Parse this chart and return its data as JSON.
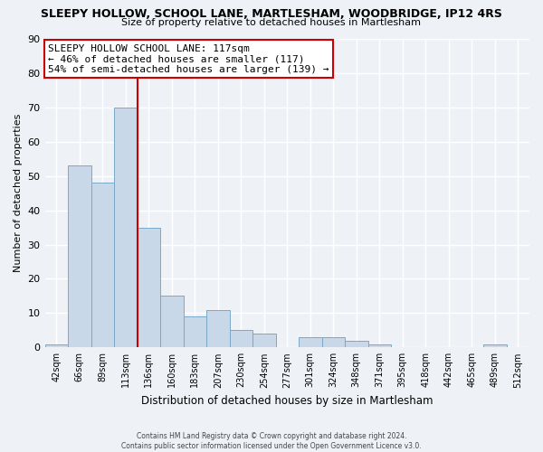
{
  "title": "SLEEPY HOLLOW, SCHOOL LANE, MARTLESHAM, WOODBRIDGE, IP12 4RS",
  "subtitle": "Size of property relative to detached houses in Martlesham",
  "xlabel": "Distribution of detached houses by size in Martlesham",
  "ylabel": "Number of detached properties",
  "footer_line1": "Contains HM Land Registry data © Crown copyright and database right 2024.",
  "footer_line2": "Contains public sector information licensed under the Open Government Licence v3.0.",
  "bin_labels": [
    "42sqm",
    "66sqm",
    "89sqm",
    "113sqm",
    "136sqm",
    "160sqm",
    "183sqm",
    "207sqm",
    "230sqm",
    "254sqm",
    "277sqm",
    "301sqm",
    "324sqm",
    "348sqm",
    "371sqm",
    "395sqm",
    "418sqm",
    "442sqm",
    "465sqm",
    "489sqm",
    "512sqm"
  ],
  "bar_values": [
    1,
    53,
    48,
    70,
    35,
    15,
    9,
    11,
    5,
    4,
    0,
    3,
    3,
    2,
    1,
    0,
    0,
    0,
    0,
    1,
    0
  ],
  "bar_color": "#c8d8e8",
  "bar_edge_color": "#7aaac8",
  "vline_color": "#cc0000",
  "ylim": [
    0,
    90
  ],
  "yticks": [
    0,
    10,
    20,
    30,
    40,
    50,
    60,
    70,
    80,
    90
  ],
  "annotation_title": "SLEEPY HOLLOW SCHOOL LANE: 117sqm",
  "annotation_line1": "← 46% of detached houses are smaller (117)",
  "annotation_line2": "54% of semi-detached houses are larger (139) →",
  "annotation_box_fc": "#ffffff",
  "annotation_box_ec": "#cc0000",
  "bg_color": "#eef2f7",
  "plot_bg_color": "#eef2f7",
  "grid_color": "#ffffff",
  "title_fontsize": 9,
  "subtitle_fontsize": 8
}
